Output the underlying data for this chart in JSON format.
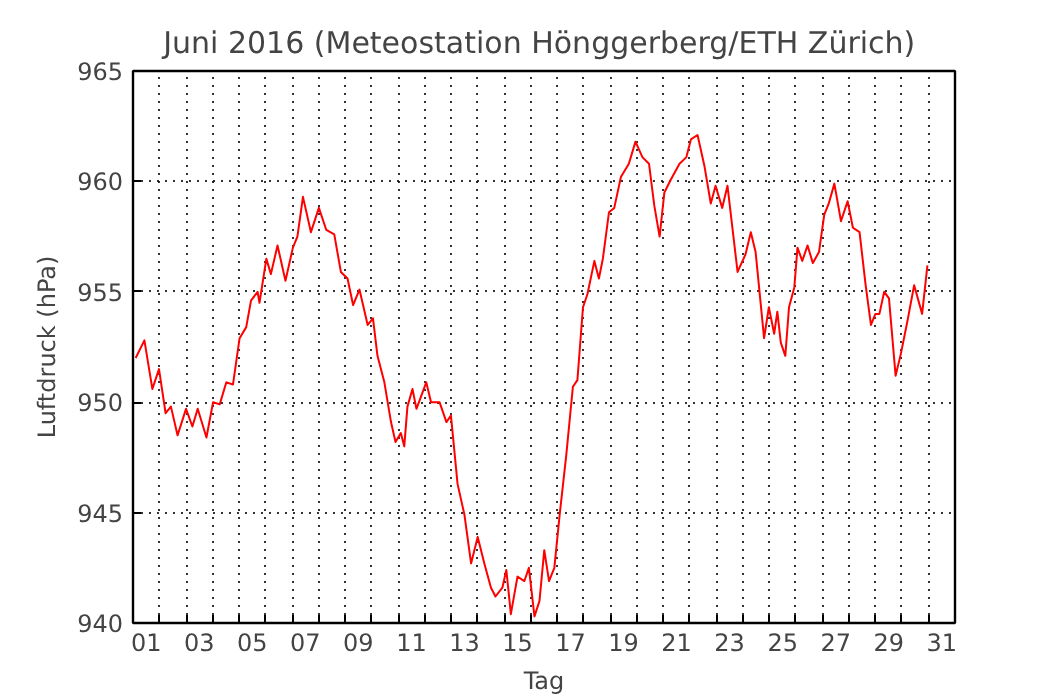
{
  "chart_data": {
    "type": "line",
    "title": "Juni 2016  (Meteostation Hönggerberg/ETH Zürich)",
    "xlabel": "Tag",
    "ylabel": "Luftdruck (hPa)",
    "x": [
      1.1,
      1.43,
      1.73,
      1.98,
      2.23,
      2.43,
      2.68,
      3.0,
      3.24,
      3.44,
      3.77,
      4.02,
      4.27,
      4.52,
      4.77,
      5.02,
      5.27,
      5.45,
      5.7,
      5.77,
      6.03,
      6.2,
      6.45,
      6.75,
      7.03,
      7.2,
      7.41,
      7.71,
      8.01,
      8.29,
      8.59,
      8.84,
      9.09,
      9.3,
      9.54,
      9.85,
      10.05,
      10.22,
      10.48,
      10.73,
      10.9,
      11.1,
      11.23,
      11.35,
      11.54,
      11.69,
      12.06,
      12.24,
      12.56,
      12.82,
      12.99,
      13.24,
      13.5,
      13.75,
      14.0,
      14.25,
      14.5,
      14.67,
      14.93,
      15.08,
      15.25,
      15.5,
      15.76,
      15.93,
      16.14,
      16.33,
      16.51,
      16.69,
      16.89,
      17.09,
      17.34,
      17.59,
      17.76,
      17.97,
      18.14,
      18.4,
      18.57,
      18.72,
      18.95,
      19.15,
      19.4,
      19.7,
      19.95,
      20.21,
      20.46,
      20.66,
      20.86,
      21.04,
      21.29,
      21.61,
      21.87,
      22.04,
      22.29,
      22.55,
      22.79,
      22.97,
      23.22,
      23.42,
      23.8,
      24.1,
      24.3,
      24.48,
      24.8,
      24.98,
      25.18,
      25.3,
      25.43,
      25.6,
      25.74,
      25.94,
      26.06,
      26.24,
      26.44,
      26.64,
      26.87,
      27.07,
      27.24,
      27.45,
      27.7,
      27.95,
      28.15,
      28.4,
      28.63,
      28.83,
      29.0,
      29.15,
      29.33,
      29.51,
      29.76,
      29.96,
      30.21,
      30.46,
      30.76,
      30.96
    ],
    "series": [
      {
        "color": "#ff0000",
        "values": [
          952.0,
          952.8,
          950.6,
          951.5,
          949.5,
          949.8,
          948.5,
          949.7,
          948.9,
          949.7,
          948.4,
          950.0,
          949.9,
          950.9,
          950.8,
          952.9,
          953.4,
          954.6,
          955.0,
          954.5,
          956.5,
          955.8,
          957.1,
          955.5,
          957.0,
          957.5,
          959.3,
          957.7,
          958.8,
          957.8,
          957.6,
          955.9,
          955.6,
          954.4,
          955.1,
          953.5,
          953.8,
          952.1,
          950.9,
          949.1,
          948.2,
          948.6,
          948.0,
          949.8,
          950.6,
          949.7,
          950.9,
          950.0,
          950.0,
          949.1,
          949.4,
          946.3,
          944.9,
          942.7,
          943.9,
          942.7,
          941.6,
          941.2,
          941.6,
          942.4,
          940.4,
          942.1,
          941.9,
          942.5,
          940.3,
          941.0,
          943.3,
          941.9,
          942.5,
          944.9,
          947.6,
          950.7,
          951.0,
          954.3,
          954.9,
          956.4,
          955.6,
          956.5,
          958.6,
          958.8,
          960.2,
          960.8,
          961.8,
          961.1,
          960.8,
          958.9,
          957.5,
          959.5,
          960.1,
          960.8,
          961.1,
          961.9,
          962.1,
          960.7,
          959.0,
          959.8,
          958.8,
          959.8,
          955.9,
          956.7,
          957.7,
          956.8,
          952.9,
          954.3,
          953.1,
          954.1,
          952.7,
          952.1,
          954.3,
          955.2,
          957.0,
          956.4,
          957.1,
          956.3,
          956.8,
          958.5,
          959.0,
          959.9,
          958.2,
          959.1,
          957.9,
          957.7,
          955.3,
          953.5,
          954.0,
          954.0,
          955.0,
          954.7,
          951.2,
          952.2,
          953.7,
          955.3,
          954.0,
          956.2
        ]
      }
    ],
    "xlim": [
      1,
      32
    ],
    "ylim": [
      940,
      965
    ],
    "xticks": [
      {
        "value": 1.5,
        "label": "01"
      },
      {
        "value": 3.5,
        "label": "03"
      },
      {
        "value": 5.5,
        "label": "05"
      },
      {
        "value": 7.5,
        "label": "07"
      },
      {
        "value": 9.5,
        "label": "09"
      },
      {
        "value": 11.5,
        "label": "11"
      },
      {
        "value": 13.5,
        "label": "13"
      },
      {
        "value": 15.5,
        "label": "15"
      },
      {
        "value": 17.5,
        "label": "17"
      },
      {
        "value": 19.5,
        "label": "19"
      },
      {
        "value": 21.5,
        "label": "21"
      },
      {
        "value": 23.5,
        "label": "23"
      },
      {
        "value": 25.5,
        "label": "25"
      },
      {
        "value": 27.5,
        "label": "27"
      },
      {
        "value": 29.5,
        "label": "29"
      },
      {
        "value": 31.5,
        "label": "31"
      },
      {
        "value": 2,
        "label": null
      },
      {
        "value": 3,
        "label": null
      },
      {
        "value": 4,
        "label": null
      },
      {
        "value": 5,
        "label": null
      },
      {
        "value": 6,
        "label": null
      },
      {
        "value": 7,
        "label": null
      },
      {
        "value": 8,
        "label": null
      },
      {
        "value": 9,
        "label": null
      },
      {
        "value": 10,
        "label": null
      },
      {
        "value": 11,
        "label": null
      },
      {
        "value": 12,
        "label": null
      },
      {
        "value": 13,
        "label": null
      },
      {
        "value": 14,
        "label": null
      },
      {
        "value": 15,
        "label": null
      },
      {
        "value": 16,
        "label": null
      },
      {
        "value": 17,
        "label": null
      },
      {
        "value": 18,
        "label": null
      },
      {
        "value": 19,
        "label": null
      },
      {
        "value": 20,
        "label": null
      },
      {
        "value": 21,
        "label": null
      },
      {
        "value": 22,
        "label": null
      },
      {
        "value": 23,
        "label": null
      },
      {
        "value": 24,
        "label": null
      },
      {
        "value": 25,
        "label": null
      },
      {
        "value": 26,
        "label": null
      },
      {
        "value": 27,
        "label": null
      },
      {
        "value": 28,
        "label": null
      },
      {
        "value": 29,
        "label": null
      },
      {
        "value": 30,
        "label": null
      },
      {
        "value": 31,
        "label": null
      }
    ],
    "yticks": [
      940,
      945,
      950,
      955,
      960,
      965
    ],
    "grid": true,
    "line_style": "solid"
  }
}
